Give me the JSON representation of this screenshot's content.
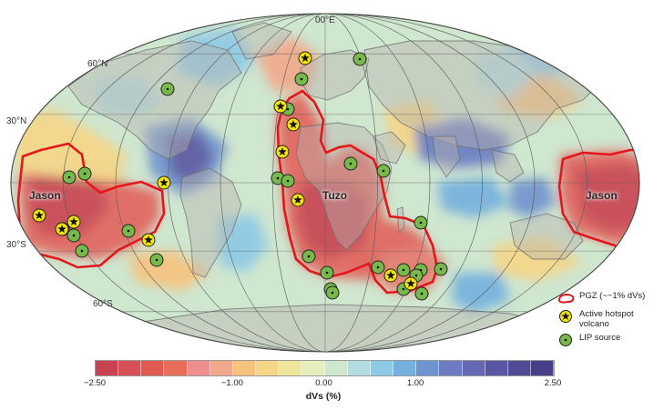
{
  "map": {
    "projection": "Mollweide",
    "meridian_label": "00°E",
    "latitude_labels": {
      "n60": "60°N",
      "n30": "30°N",
      "s30": "30°S",
      "s60": "60°S"
    },
    "regions": {
      "jason_west": "Jason",
      "tuzo": "Tuzo",
      "jason_east": "Jason"
    }
  },
  "legend": {
    "pgz": "PGZ (~−1% dVs)",
    "hotspot": "Active hotspot volcano",
    "lip": "LIP source"
  },
  "colorbar": {
    "title": "dVs (%)",
    "min": -2.5,
    "max": 2.5,
    "ticks": [
      "−2.50",
      "−1.00",
      "0.00",
      "1.00",
      "2.50"
    ],
    "colors": [
      "#c8434f",
      "#d64f55",
      "#e05a52",
      "#e86e5a",
      "#ef8e8e",
      "#f2a88a",
      "#f6c27c",
      "#f5d586",
      "#eee69a",
      "#e6eebd",
      "#cfe6cf",
      "#b2dcdf",
      "#8ec9e6",
      "#73b0de",
      "#6f93cf",
      "#6b7cc3",
      "#6468b4",
      "#5a56a3",
      "#4f4b95",
      "#463f88"
    ],
    "palette": {
      "pgz": "#e3161b",
      "hotspot_fill": "#f4e600",
      "lip_fill": "#78b94b",
      "land": "#b7b3ad"
    }
  }
}
